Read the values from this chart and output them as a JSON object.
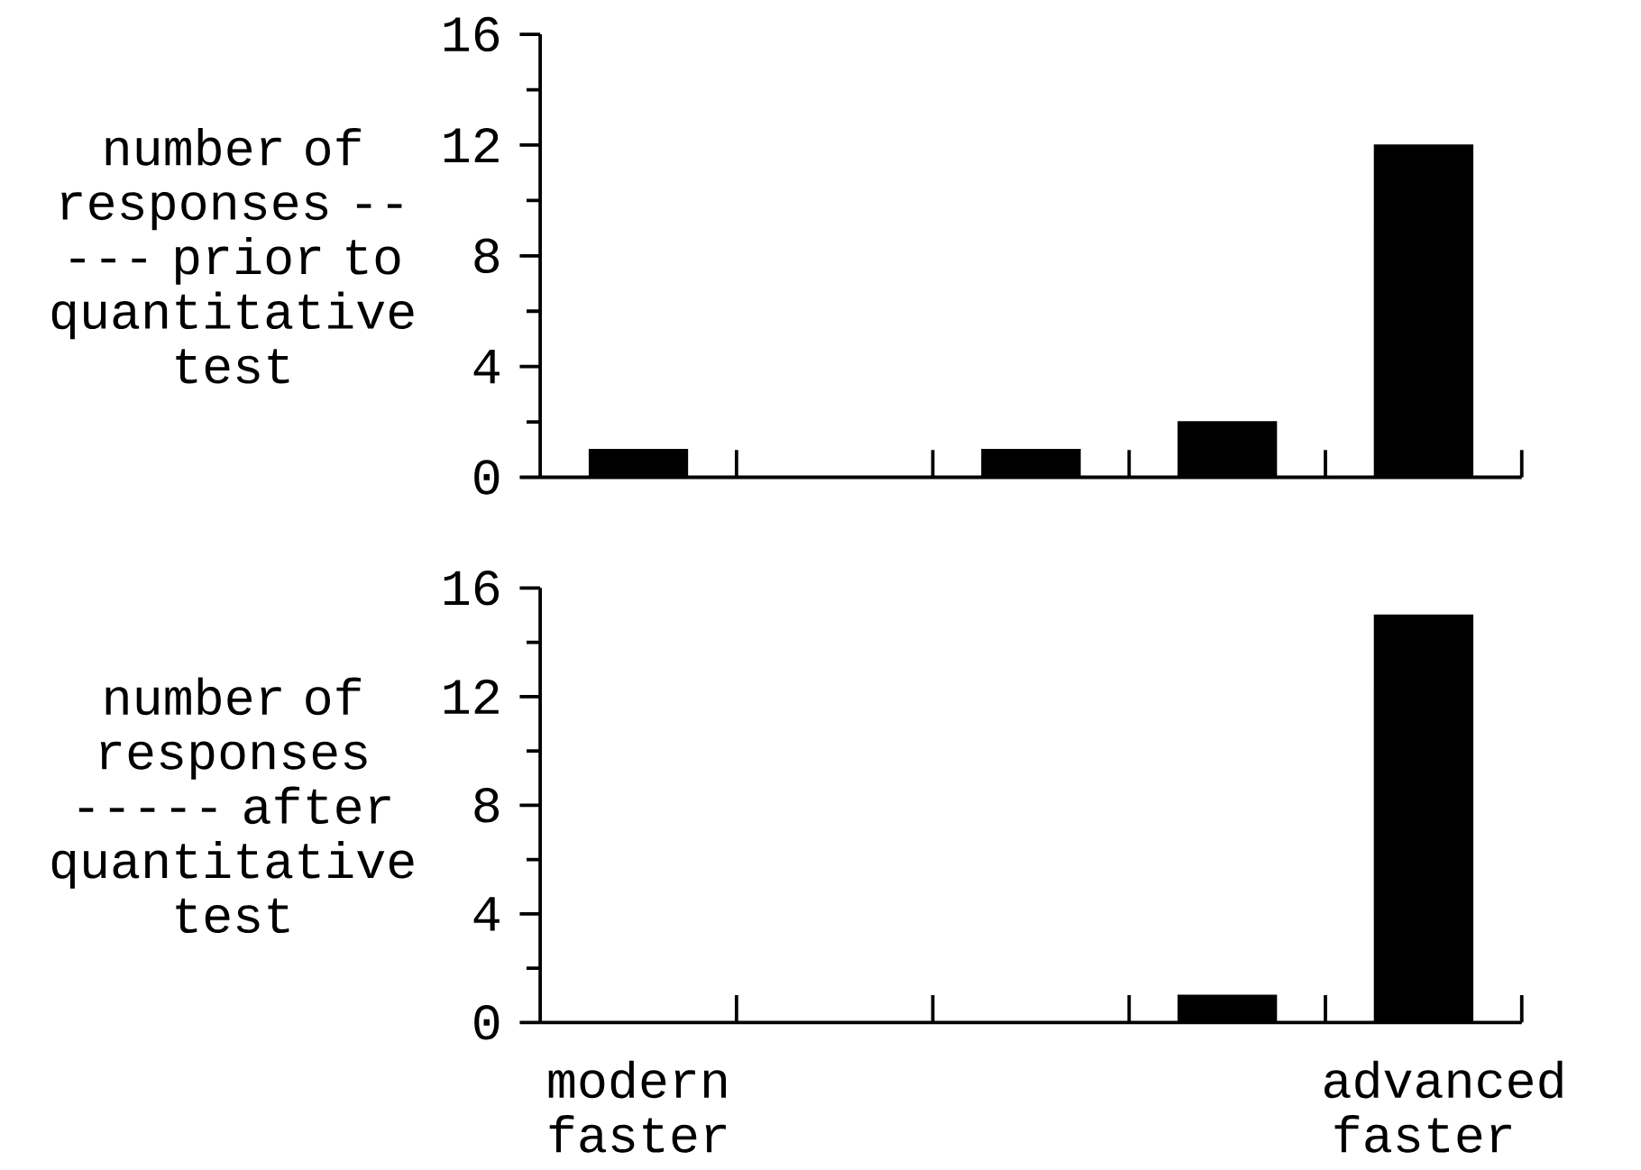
{
  "chart_data": [
    {
      "type": "bar",
      "ylabel": "number of responses ----- prior to quantitative test",
      "categories": [
        null,
        null,
        null,
        null,
        null
      ],
      "values": [
        1,
        0,
        1,
        2,
        12
      ],
      "color": "#000000",
      "ylim": [
        0,
        16
      ],
      "yticks": [
        0,
        4,
        8,
        12,
        16
      ],
      "tick_labels": "y"
    },
    {
      "type": "bar",
      "ylabel": "number of responses ----- after quantitative test",
      "categories": [
        "modern faster",
        null,
        null,
        null,
        "advanced faster"
      ],
      "values": [
        0,
        0,
        0,
        1,
        15
      ],
      "color": "#000000",
      "ylim": [
        0,
        16
      ],
      "yticks": [
        0,
        4,
        8,
        12,
        16
      ]
    }
  ]
}
